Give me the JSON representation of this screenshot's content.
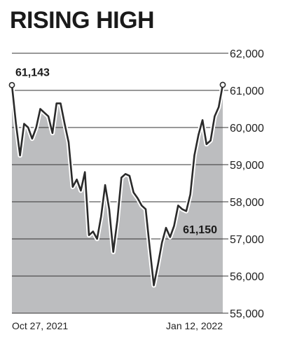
{
  "chart_data": {
    "type": "area",
    "title": "RISING HIGH",
    "xlabel": "",
    "ylabel": "",
    "ylim": [
      55000,
      62000
    ],
    "x_ticks": [
      "Oct 27, 2021",
      "Jan 12, 2022"
    ],
    "y_ticks": [
      62000,
      61000,
      60000,
      59000,
      58000,
      57000,
      56000,
      55000
    ],
    "y_tick_labels": [
      "62,000",
      "61,000",
      "60,000",
      "59,000",
      "58,000",
      "57,000",
      "56,000",
      "55,000"
    ],
    "grid": true,
    "colors": {
      "fill": "#bcbdbf",
      "line": "#2a2a2a",
      "grid": "#333333"
    },
    "annotations": [
      {
        "label": "61,143",
        "index": 0
      },
      {
        "label": "61,150",
        "index": 52
      }
    ],
    "series": [
      {
        "values": [
          61143,
          60100,
          59250,
          60100,
          60000,
          59700,
          60000,
          60500,
          60400,
          60300,
          59850,
          60650,
          60650,
          60100,
          59600,
          58400,
          58600,
          58300,
          58800,
          57100,
          57200,
          57000,
          57600,
          58450,
          57800,
          56650,
          57500,
          58650,
          58750,
          58700,
          58250,
          58100,
          57900,
          57800,
          56750,
          55750,
          56300,
          56900,
          57300,
          57050,
          57350,
          57900,
          57800,
          57750,
          58200,
          59250,
          59800,
          60200,
          59550,
          59650,
          60300,
          60550,
          61150
        ]
      }
    ]
  }
}
